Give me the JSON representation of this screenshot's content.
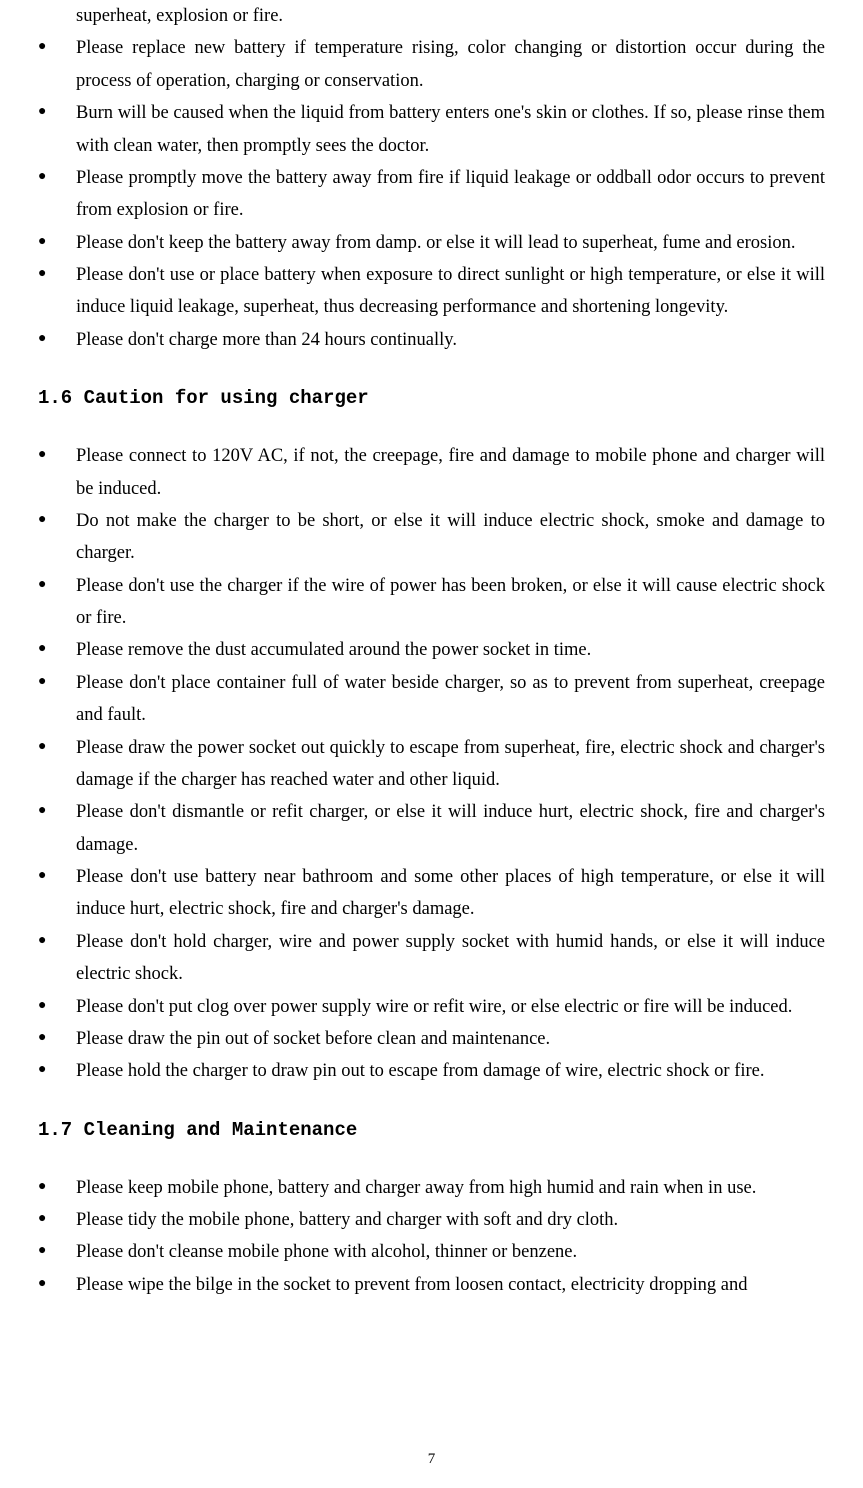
{
  "continued": "superheat, explosion or fire.",
  "list1": [
    "Please replace new battery if temperature rising, color changing or distortion occur during the process of operation, charging or conservation.",
    "Burn will be caused when the liquid from battery enters one's skin or clothes. If so, please rinse them with clean water, then promptly sees the doctor.",
    "Please promptly move the battery away from fire if liquid leakage or oddball odor occurs to prevent from explosion or fire.",
    "Please don't keep the battery away from damp. or else it will lead to superheat, fume and erosion.",
    "Please don't use or place battery when exposure to direct sunlight or high temperature, or else it will induce liquid leakage, superheat, thus decreasing performance and shortening longevity.",
    "Please don't charge more than 24 hours continually."
  ],
  "heading1": "1.6 Caution for using charger",
  "list2": [
    "Please connect to 120V AC, if not, the creepage, fire and damage to mobile phone and charger will be induced.",
    "Do not make the charger to be short, or else it will induce electric shock, smoke and damage to charger.",
    "Please don't use the charger if the wire of power has been broken, or else it will cause electric shock or fire.",
    "Please remove the dust accumulated around the power socket in time.",
    "Please don't place container full of water beside charger, so as to prevent from superheat, creepage and fault.",
    "Please draw the power socket out quickly to escape from superheat, fire, electric shock and charger's damage if the charger has reached water and other liquid.",
    "Please don't dismantle or refit charger, or else it will induce hurt, electric shock, fire and charger's damage.",
    "Please don't use battery near bathroom and some other places of high temperature, or else it will induce hurt, electric shock, fire and charger's damage.",
    "Please don't hold charger, wire and power supply socket with humid hands, or else it will induce electric shock.",
    "Please don't put clog over power supply wire or refit wire, or else electric or fire will be induced.",
    "Please draw the pin out of socket before clean and maintenance.",
    "Please hold the charger to draw pin out to escape from damage of wire, electric shock or fire."
  ],
  "heading2": "1.7 Cleaning and Maintenance",
  "list3": [
    "Please keep mobile phone, battery and charger away from high humid and rain when in use.",
    "Please tidy the mobile phone, battery and charger with soft and dry cloth.",
    "Please don't cleanse mobile phone with alcohol, thinner or benzene.",
    "Please wipe the bilge in the socket to prevent from loosen contact, electricity dropping and"
  ],
  "pageNumber": "7"
}
